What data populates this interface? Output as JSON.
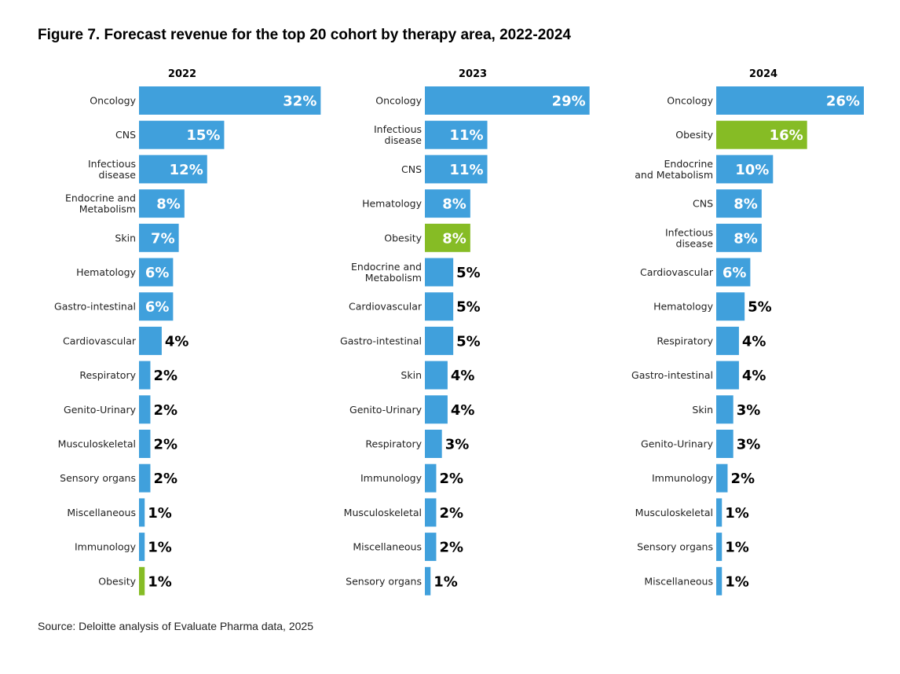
{
  "figure": {
    "title": "Figure 7. Forecast revenue for the top 20 cohort by therapy area, 2022-2024",
    "source": "Source: Deloitte analysis of Evaluate Pharma data, 2025"
  },
  "colors": {
    "default_bar": "#40a0dc",
    "highlight_bar": "#86bc25",
    "label_inside": "#ffffff",
    "label_outside": "#000000"
  },
  "chart_data": [
    {
      "type": "bar",
      "orientation": "horizontal",
      "title": "2022",
      "unit": "%",
      "categories": [
        "Oncology",
        "CNS",
        "Infectious\ndisease",
        "Endocrine and\nMetabolism",
        "Skin",
        "Hematology",
        "Gastro-intestinal",
        "Cardiovascular",
        "Respiratory",
        "Genito-Urinary",
        "Musculoskeletal",
        "Sensory organs",
        "Miscellaneous",
        "Immunology",
        "Obesity"
      ],
      "values": [
        32,
        15,
        12,
        8,
        7,
        6,
        6,
        4,
        2,
        2,
        2,
        2,
        1,
        1,
        1
      ],
      "highlight": [
        "Obesity"
      ]
    },
    {
      "type": "bar",
      "orientation": "horizontal",
      "title": "2023",
      "unit": "%",
      "categories": [
        "Oncology",
        "Infectious\ndisease",
        "CNS",
        "Hematology",
        "Obesity",
        "Endocrine and\nMetabolism",
        "Cardiovascular",
        "Gastro-intestinal",
        "Skin",
        "Genito-Urinary",
        "Respiratory",
        "Immunology",
        "Musculoskeletal",
        "Miscellaneous",
        "Sensory organs"
      ],
      "values": [
        29,
        11,
        11,
        8,
        8,
        5,
        5,
        5,
        4,
        4,
        3,
        2,
        2,
        2,
        1
      ],
      "highlight": [
        "Obesity"
      ]
    },
    {
      "type": "bar",
      "orientation": "horizontal",
      "title": "2024",
      "unit": "%",
      "categories": [
        "Oncology",
        "Obesity",
        "Endocrine\nand Metabolism",
        "CNS",
        "Infectious\ndisease",
        "Cardiovascular",
        "Hematology",
        "Respiratory",
        "Gastro-intestinal",
        "Skin",
        "Genito-Urinary",
        "Immunology",
        "Musculoskeletal",
        "Sensory organs",
        "Miscellaneous"
      ],
      "values": [
        26,
        16,
        10,
        8,
        8,
        6,
        5,
        4,
        4,
        3,
        3,
        2,
        1,
        1,
        1
      ],
      "highlight": [
        "Obesity"
      ]
    }
  ]
}
